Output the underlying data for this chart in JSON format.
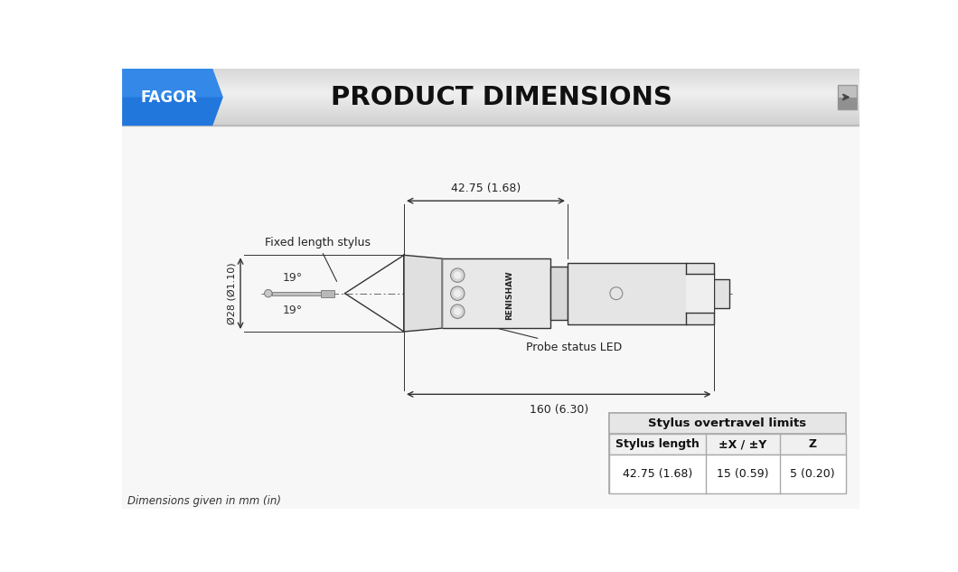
{
  "title": "PRODUCT DIMENSIONS",
  "fagor_label": "FAGOR",
  "bg_color": "#ffffff",
  "fagor_blue_dark": "#1155aa",
  "fagor_blue_mid": "#2277dd",
  "fagor_blue_light": "#55aaff",
  "dim_42_75": "42.75 (1.68)",
  "dim_160": "160 (6.30)",
  "dim_28_phi": "Ø28 (Ø1.10)",
  "angle_label": "19°",
  "fixed_stylus_label": "Fixed length stylus",
  "probe_led_label": "Probe status LED",
  "footer_label": "Dimensions given in mm (in)",
  "table_title": "Stylus overtravel limits",
  "col1_header": "Stylus length",
  "col2_header": "±X / ±Y",
  "col3_header": "Z",
  "row1_col1": "42.75 (1.68)",
  "row1_col2": "15 (0.59)",
  "row1_col3": "5 (0.20)",
  "line_color": "#333333",
  "renishaw_text": "RENISHAW"
}
